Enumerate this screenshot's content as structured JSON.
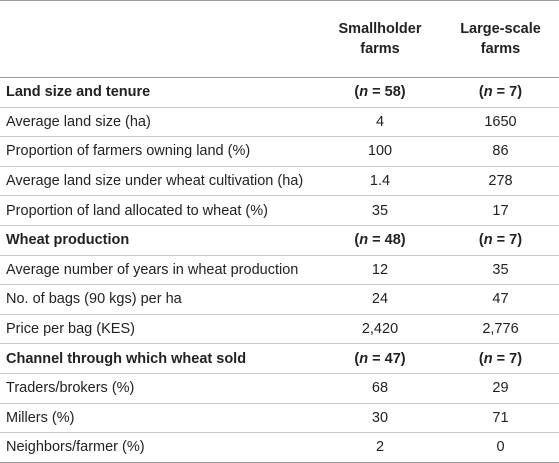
{
  "header": {
    "col1": "",
    "col2_line1": "Smallholder",
    "col2_line2": "farms",
    "col3_line1": "Large-scale",
    "col3_line2": "farms"
  },
  "rows": [
    {
      "type": "section",
      "label": "Land size and tenure",
      "small_n": "58",
      "large_n": "7"
    },
    {
      "type": "data",
      "label": "Average land size (ha)",
      "small": "4",
      "large": "1650"
    },
    {
      "type": "data",
      "label": "Proportion of farmers owning land (%)",
      "small": "100",
      "large": "86"
    },
    {
      "type": "data",
      "label": "Average land size under wheat cultivation (ha)",
      "small": "1.4",
      "large": "278"
    },
    {
      "type": "data",
      "label": "Proportion of land allocated to wheat (%)",
      "small": "35",
      "large": "17"
    },
    {
      "type": "section",
      "label": "Wheat production",
      "small_n": "48",
      "large_n": "7"
    },
    {
      "type": "data",
      "label": "Average number of years in wheat production",
      "small": "12",
      "large": "35"
    },
    {
      "type": "data",
      "label": "No. of bags (90 kgs) per ha",
      "small": "24",
      "large": "47"
    },
    {
      "type": "data",
      "label": "Price per bag (KES)",
      "small": "2,420",
      "large": "2,776"
    },
    {
      "type": "section",
      "label": "Channel through which wheat sold",
      "small_n": "47",
      "large_n": "7"
    },
    {
      "type": "data",
      "label": "Traders/brokers (%)",
      "small": "68",
      "large": "29"
    },
    {
      "type": "data",
      "label": "Millers (%)",
      "small": "30",
      "large": "71"
    },
    {
      "type": "data",
      "label": "Neighbors/farmer (%)",
      "small": "2",
      "large": "0"
    }
  ]
}
